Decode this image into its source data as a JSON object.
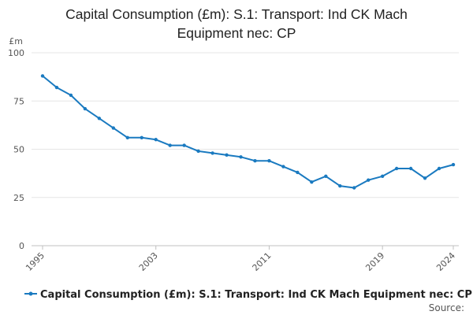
{
  "title_lines": [
    "Capital Consumption (£m): S.1: Transport: Ind CK Mach",
    "Equipment nec: CP"
  ],
  "colors": {
    "series": "#1a7ac0",
    "grid": "#e6e6e6",
    "text": "#222222",
    "muted": "#555555"
  },
  "source_label": "Source:",
  "chart_data": {
    "type": "line",
    "title": "Capital Consumption (£m): S.1: Transport: Ind CK Mach Equipment nec: CP",
    "ylabel": "£m",
    "xlabel": "",
    "ylim": [
      0,
      100
    ],
    "xlim": [
      1995,
      2024
    ],
    "y_ticks": [
      0,
      25,
      50,
      75,
      100
    ],
    "x_ticks": [
      1995,
      2003,
      2011,
      2019,
      2024
    ],
    "grid": true,
    "legend_position": "bottom",
    "series": [
      {
        "name": "Capital Consumption (£m): S.1: Transport: Ind CK Mach Equipment nec: CP",
        "color": "#1a7ac0",
        "x": [
          1995,
          1996,
          1997,
          1998,
          1999,
          2000,
          2001,
          2002,
          2003,
          2004,
          2005,
          2006,
          2007,
          2008,
          2009,
          2010,
          2011,
          2012,
          2013,
          2014,
          2015,
          2016,
          2017,
          2018,
          2019,
          2020,
          2021,
          2022,
          2023,
          2024
        ],
        "values": [
          88,
          82,
          78,
          71,
          66,
          61,
          56,
          56,
          55,
          52,
          52,
          49,
          48,
          47,
          46,
          44,
          44,
          41,
          38,
          33,
          36,
          31,
          30,
          34,
          36,
          40,
          40,
          35,
          40,
          42
        ]
      }
    ]
  }
}
